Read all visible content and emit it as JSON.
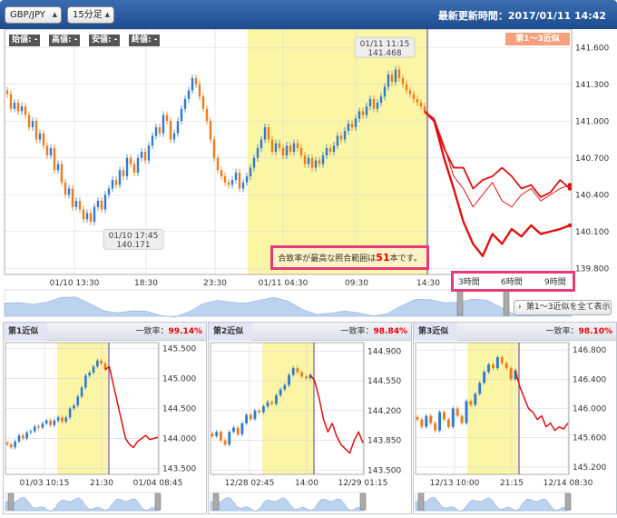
{
  "header": {
    "pair": "GBP/JPY",
    "interval": "15分足",
    "updated_label": "最新更新時間：",
    "updated_value": "2017/01/11 14:42"
  },
  "ohlc": {
    "open": "始値: -",
    "high": "高値: -",
    "low": "安値: -",
    "close": "終値: -"
  },
  "badge": "第1〜3近似",
  "notice": {
    "before": "合致率が最高な照合範囲は",
    "num": "51",
    "after": "本です。"
  },
  "hours": [
    "3時間",
    "6時間",
    "9時間"
  ],
  "show_all": "第1〜3近似を全て表示",
  "colors": {
    "up": "#2f7ad1",
    "down": "#ef7a1a",
    "forecast": "#e01010",
    "match_zone": "#fbf5a6",
    "future_zone_top": "#f7b7b7",
    "future_zone_bottom": "#aac8f5"
  },
  "chart_data": [
    {
      "type": "candlestick",
      "x_ticks": [
        "01/10 13:30",
        "18:30",
        "23:30",
        "01/11 04:30",
        "09:30",
        "14:30"
      ],
      "y_ticks": [
        "139.800",
        "140.100",
        "140.400",
        "140.700",
        "141.000",
        "141.300",
        "141.600"
      ],
      "ylim": [
        139.75,
        141.75
      ],
      "annotations": [
        {
          "time": "01/10 17:45",
          "price": "140.171"
        },
        {
          "time": "01/11 11:15",
          "price": "141.468"
        }
      ],
      "close": [
        141.22,
        141.1,
        141.15,
        141.08,
        141.12,
        141.05,
        140.95,
        141.0,
        140.85,
        140.9,
        140.8,
        140.72,
        140.78,
        140.6,
        140.65,
        140.5,
        140.4,
        140.45,
        140.3,
        140.35,
        140.28,
        140.2,
        140.25,
        140.18,
        140.3,
        140.35,
        140.28,
        140.4,
        140.45,
        140.52,
        140.48,
        140.6,
        140.55,
        140.7,
        140.65,
        140.58,
        140.7,
        140.75,
        140.68,
        140.8,
        140.88,
        140.95,
        140.9,
        141.05,
        141.0,
        140.85,
        140.9,
        141.0,
        141.1,
        141.18,
        141.25,
        141.35,
        141.3,
        141.2,
        141.1,
        141.0,
        140.85,
        140.7,
        140.6,
        140.55,
        140.5,
        140.48,
        140.52,
        140.58,
        140.45,
        140.5,
        140.55,
        140.62,
        140.7,
        140.78,
        140.85,
        140.95,
        140.85,
        140.75,
        140.82,
        140.78,
        140.72,
        140.8,
        140.75,
        140.82,
        140.78,
        140.72,
        140.65,
        140.7,
        140.62,
        140.68,
        140.65,
        140.72,
        140.78,
        140.75,
        140.8,
        140.88,
        140.85,
        140.92,
        140.98,
        140.95,
        141.02,
        141.08,
        141.05,
        141.12,
        141.18,
        141.1,
        141.15,
        141.2,
        141.28,
        141.38,
        141.32,
        141.42,
        141.35,
        141.3,
        141.25,
        141.22,
        141.18,
        141.15,
        141.12,
        141.08
      ],
      "forecast": [
        {
          "name": "",
          "values": [
            141.02,
            140.8,
            140.55,
            140.45,
            140.3,
            140.4,
            140.5,
            140.35,
            140.3,
            140.4,
            140.45,
            140.35,
            140.4,
            140.45,
            140.48
          ]
        },
        {
          "name": "",
          "values": [
            141.0,
            140.78,
            140.62,
            140.62,
            140.45,
            140.52,
            140.55,
            140.62,
            140.55,
            140.45,
            140.48,
            140.38,
            140.42,
            140.52,
            140.45
          ]
        },
        {
          "name": "",
          "values": [
            141.0,
            140.7,
            140.45,
            140.18,
            140.0,
            139.9,
            140.08,
            140.0,
            140.12,
            140.06,
            140.15,
            140.08,
            140.1,
            140.12,
            140.15
          ]
        }
      ]
    },
    {
      "type": "candlestick",
      "label": "第1近似",
      "rate_label": "一致率：",
      "rate": "99.14%",
      "x_ticks": [
        "01/03 10:15",
        "21:30",
        "01/04 08:45"
      ],
      "y_ticks": [
        "143.500",
        "144.000",
        "144.500",
        "145.000",
        "145.500"
      ],
      "ylim": [
        143.4,
        145.6
      ],
      "close": [
        143.9,
        143.85,
        143.95,
        144.05,
        144.0,
        144.1,
        144.12,
        144.2,
        144.18,
        144.25,
        144.3,
        144.22,
        144.3,
        144.35,
        144.28,
        144.35,
        144.5,
        144.55,
        144.7,
        144.85,
        145.05,
        145.1,
        145.2,
        145.3,
        145.25,
        145.15
      ],
      "forecast": [
        {
          "name": "",
          "values": [
            145.2,
            144.9,
            144.6,
            144.3,
            144.0,
            143.9,
            143.85,
            143.95,
            144.0,
            144.05,
            143.98,
            144.0,
            144.02
          ]
        }
      ]
    },
    {
      "type": "candlestick",
      "label": "第2近似",
      "rate_label": "一致率：",
      "rate": "98.84%",
      "x_ticks": [
        "12/28 02:45",
        "14:00",
        "12/29 01:15"
      ],
      "y_ticks": [
        "143.500",
        "143.850",
        "144.200",
        "144.550",
        "144.900"
      ],
      "ylim": [
        143.45,
        145.0
      ],
      "close": [
        143.9,
        143.95,
        143.85,
        143.8,
        143.95,
        144.0,
        143.92,
        144.05,
        144.15,
        144.1,
        144.2,
        144.18,
        144.25,
        144.3,
        144.28,
        144.38,
        144.45,
        144.5,
        144.62,
        144.7,
        144.65,
        144.6,
        144.58,
        144.62
      ],
      "forecast": [
        {
          "name": "",
          "values": [
            144.55,
            144.35,
            144.1,
            143.95,
            144.05,
            143.9,
            143.8,
            143.75,
            143.7,
            143.85,
            143.95,
            143.82
          ]
        }
      ]
    },
    {
      "type": "candlestick",
      "label": "第3近似",
      "rate_label": "一致率：",
      "rate": "98.10%",
      "x_ticks": [
        "12/13 10:00",
        "21:15",
        "12/14 08:30"
      ],
      "y_ticks": [
        "145.200",
        "145.600",
        "146.000",
        "146.400",
        "146.800"
      ],
      "ylim": [
        145.1,
        146.9
      ],
      "close": [
        145.85,
        145.75,
        145.9,
        145.8,
        145.7,
        145.95,
        145.85,
        145.75,
        146.0,
        145.9,
        145.8,
        146.1,
        146.05,
        146.2,
        146.35,
        146.5,
        146.6,
        146.55,
        146.7,
        146.62,
        146.55,
        146.4,
        146.52
      ],
      "forecast": [
        {
          "name": "",
          "values": [
            146.3,
            146.15,
            146.0,
            145.95,
            145.85,
            145.9,
            145.75,
            145.8,
            145.7,
            145.75,
            145.72,
            145.8
          ]
        }
      ]
    }
  ]
}
